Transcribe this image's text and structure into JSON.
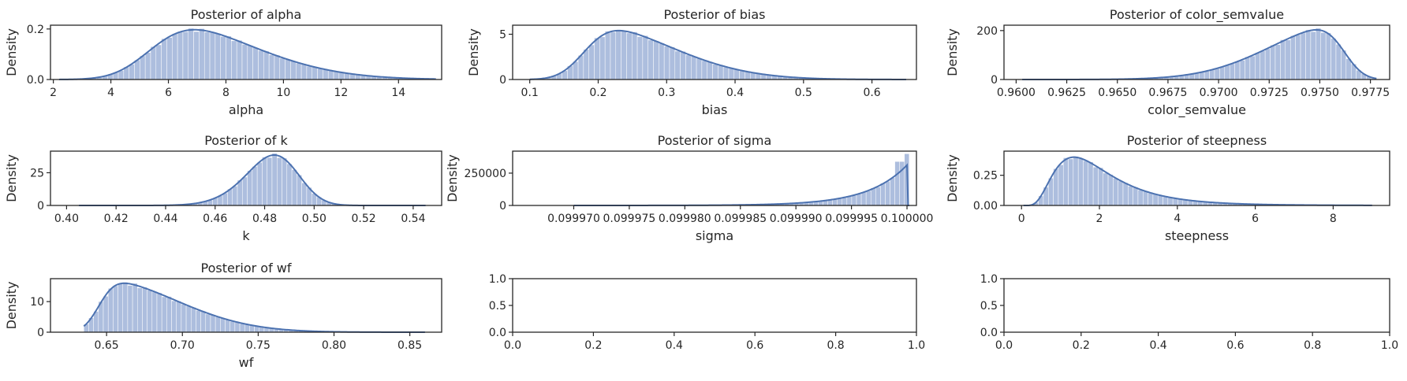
{
  "chart_data": [
    {
      "type": "histogram",
      "title": "Posterior of alpha",
      "xlabel": "alpha",
      "ylabel": "Density",
      "xlim": [
        1.9,
        15.5
      ],
      "ylim": [
        0,
        0.215
      ],
      "xticks": [
        2,
        4,
        6,
        8,
        10,
        12,
        14
      ],
      "xtick_labels": [
        "2",
        "4",
        "6",
        "8",
        "10",
        "12",
        "14"
      ],
      "yticks": [
        0,
        0.2
      ],
      "ytick_labels": [
        "0.0",
        "0.2"
      ],
      "bins": 70,
      "density_curve": "skewnormal",
      "loc": 5.4,
      "scale": 3.2,
      "shape": 3.0,
      "peak": 0.197,
      "x_min": 2.2,
      "x_max": 15.3
    },
    {
      "type": "histogram",
      "title": "Posterior of bias",
      "xlabel": "bias",
      "ylabel": "Density",
      "xlim": [
        0.075,
        0.665
      ],
      "ylim": [
        0,
        6.0
      ],
      "xticks": [
        0.1,
        0.2,
        0.3,
        0.4,
        0.5,
        0.6
      ],
      "xtick_labels": [
        "0.1",
        "0.2",
        "0.3",
        "0.4",
        "0.5",
        "0.6"
      ],
      "yticks": [
        0,
        5
      ],
      "ytick_labels": [
        "0",
        "5"
      ],
      "bins": 70,
      "density_curve": "skewnormal",
      "loc": 0.18,
      "scale": 0.12,
      "shape": 4.0,
      "peak": 5.4,
      "x_min": 0.1,
      "x_max": 0.65
    },
    {
      "type": "histogram",
      "title": "Posterior of color_semvalue",
      "xlabel": "color_semvalue",
      "ylabel": "Density",
      "xlim": [
        0.9594,
        0.97845
      ],
      "ylim": [
        0,
        222
      ],
      "xticks": [
        0.96,
        0.9625,
        0.965,
        0.9675,
        0.97,
        0.9725,
        0.975,
        0.9775
      ],
      "xtick_labels": [
        "0.9600",
        "0.9625",
        "0.9650",
        "0.9675",
        "0.9700",
        "0.9725",
        "0.9750",
        "0.9775"
      ],
      "yticks": [
        0,
        200
      ],
      "ytick_labels": [
        "0",
        "200"
      ],
      "bins": 70,
      "density_curve": "skewnormal",
      "loc": 0.9762,
      "scale": 0.0035,
      "shape": -4.5,
      "peak": 203,
      "x_min": 0.9603,
      "x_max": 0.9778
    },
    {
      "type": "histogram",
      "title": "Posterior of k",
      "xlabel": "k",
      "ylabel": "Density",
      "xlim": [
        0.3935,
        0.5515
      ],
      "ylim": [
        0,
        41.5
      ],
      "xticks": [
        0.4,
        0.42,
        0.44,
        0.46,
        0.48,
        0.5,
        0.52,
        0.54
      ],
      "xtick_labels": [
        "0.40",
        "0.42",
        "0.44",
        "0.46",
        "0.48",
        "0.50",
        "0.52",
        "0.54"
      ],
      "yticks": [
        0,
        25
      ],
      "ytick_labels": [
        "0",
        "25"
      ],
      "bins": 70,
      "density_curve": "skewnormal",
      "loc": 0.492,
      "scale": 0.015,
      "shape": -1.6,
      "peak": 38.5,
      "x_min": 0.405,
      "x_max": 0.545
    },
    {
      "type": "histogram",
      "title": "Posterior of sigma",
      "xlabel": "sigma",
      "ylabel": "Density",
      "xlim": [
        0.0999645,
        0.10000085
      ],
      "ylim": [
        0,
        420000
      ],
      "xticks": [
        0.09997,
        0.099975,
        0.09998,
        0.099985,
        0.09999,
        0.099995,
        0.1
      ],
      "xtick_labels": [
        "0.099970",
        "0.099975",
        "0.099980",
        "0.099985",
        "0.099990",
        "0.099995",
        "0.100000"
      ],
      "yticks": [
        0,
        250000
      ],
      "ytick_labels": [
        "0",
        "250000"
      ],
      "bins": 70,
      "density_curve": "exp_right",
      "right_edge": 0.1,
      "decay": 3.5e-06,
      "peak": 310000,
      "spike": 400000,
      "x_min": 0.09997,
      "x_max": 0.1000002
    },
    {
      "type": "histogram",
      "title": "Posterior of steepness",
      "xlabel": "steepness",
      "ylabel": "Density",
      "xlim": [
        -0.45,
        9.45
      ],
      "ylim": [
        0,
        0.45
      ],
      "xticks": [
        0,
        2,
        4,
        6,
        8
      ],
      "xtick_labels": [
        "0",
        "2",
        "4",
        "6",
        "8"
      ],
      "yticks": [
        0,
        0.25
      ],
      "ytick_labels": [
        "0.00",
        "0.25"
      ],
      "bins": 70,
      "density_curve": "lognormal",
      "mu": 0.6,
      "s": 0.55,
      "peak": 0.4,
      "x_min": 0.05,
      "x_max": 9.0
    },
    {
      "type": "histogram",
      "title": "Posterior of wf",
      "xlabel": "wf",
      "ylabel": "Density",
      "xlim": [
        0.613,
        0.871
      ],
      "ylim": [
        0,
        17.5
      ],
      "xticks": [
        0.65,
        0.7,
        0.75,
        0.8,
        0.85
      ],
      "xtick_labels": [
        "0.65",
        "0.70",
        "0.75",
        "0.80",
        "0.85"
      ],
      "yticks": [
        0,
        10
      ],
      "ytick_labels": [
        "0",
        "10"
      ],
      "bins": 70,
      "density_curve": "skewnormal",
      "loc": 0.645,
      "scale": 0.05,
      "shape": 6.0,
      "peak": 16.0,
      "x_min": 0.635,
      "x_max": 0.86
    },
    {
      "type": "empty",
      "title": "",
      "xlabel": "",
      "ylabel": "",
      "xlim": [
        0,
        1
      ],
      "ylim": [
        0,
        1
      ],
      "xticks": [
        0,
        0.2,
        0.4,
        0.6,
        0.8,
        1.0
      ],
      "xtick_labels": [
        "0.0",
        "0.2",
        "0.4",
        "0.6",
        "0.8",
        "1.0"
      ],
      "yticks": [
        0,
        0.5,
        1.0
      ],
      "ytick_labels": [
        "0.0",
        "0.5",
        "1.0"
      ]
    },
    {
      "type": "empty",
      "title": "",
      "xlabel": "",
      "ylabel": "",
      "xlim": [
        0,
        1
      ],
      "ylim": [
        0,
        1
      ],
      "xticks": [
        0,
        0.2,
        0.4,
        0.6,
        0.8,
        1.0
      ],
      "xtick_labels": [
        "0.0",
        "0.2",
        "0.4",
        "0.6",
        "0.8",
        "1.0"
      ],
      "yticks": [
        0,
        0.5,
        1.0
      ],
      "ytick_labels": [
        "0.0",
        "0.5",
        "1.0"
      ]
    }
  ]
}
